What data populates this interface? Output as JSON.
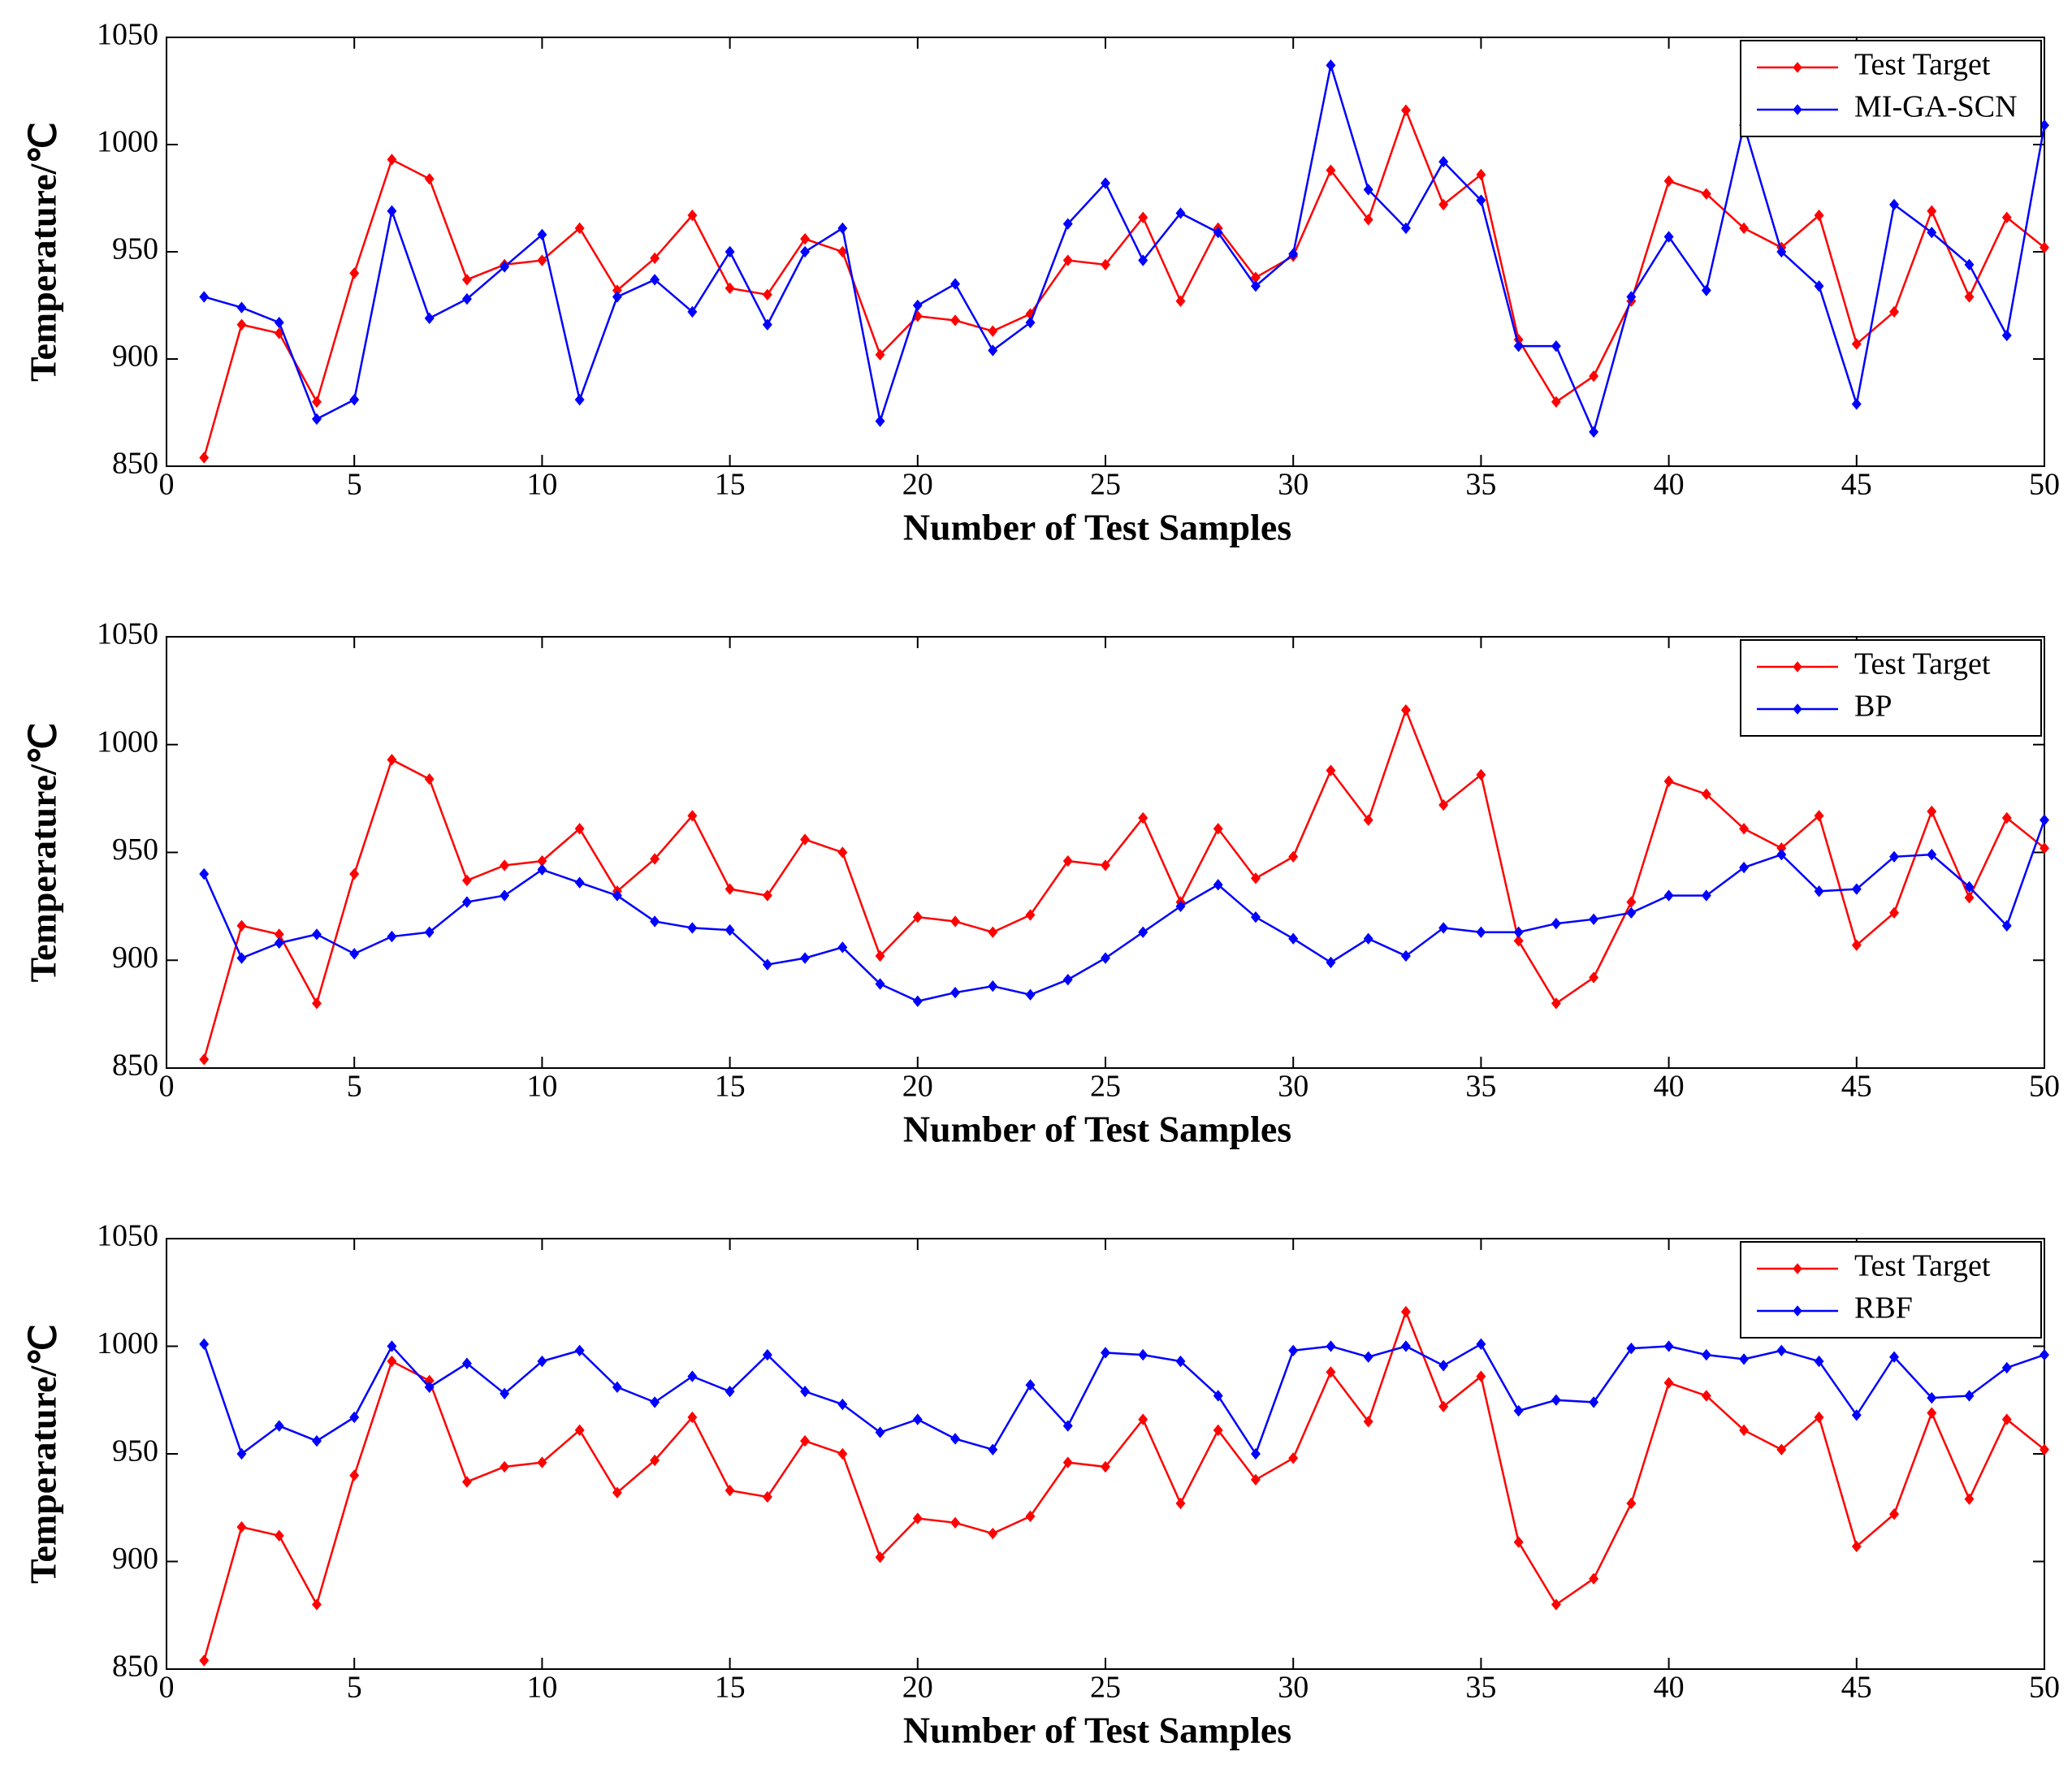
{
  "chart_data": [
    {
      "type": "line",
      "xlabel": "Number of Test Samples",
      "ylabel": "Temperature/℃",
      "x": [
        1,
        2,
        3,
        4,
        5,
        6,
        7,
        8,
        9,
        10,
        11,
        12,
        13,
        14,
        15,
        16,
        17,
        18,
        19,
        20,
        21,
        22,
        23,
        24,
        25,
        26,
        27,
        28,
        29,
        30,
        31,
        32,
        33,
        34,
        35,
        36,
        37,
        38,
        39,
        40,
        41,
        42,
        43,
        44,
        45,
        46,
        47,
        48,
        49,
        50
      ],
      "series": [
        {
          "name": "Test Target",
          "color": "#ff0000",
          "values": [
            854,
            916,
            912,
            880,
            940,
            993,
            984,
            937,
            944,
            946,
            961,
            932,
            947,
            967,
            933,
            930,
            956,
            950,
            902,
            920,
            918,
            913,
            921,
            946,
            944,
            966,
            927,
            961,
            938,
            948,
            988,
            965,
            1016,
            972,
            986,
            909,
            880,
            892,
            927,
            983,
            977,
            961,
            952,
            967,
            907,
            922,
            969,
            929,
            966,
            952
          ]
        },
        {
          "name": "MI-GA-SCN",
          "color": "#0000ff",
          "values": [
            929,
            924,
            917,
            872,
            881,
            969,
            919,
            928,
            943,
            958,
            881,
            929,
            937,
            922,
            950,
            916,
            950,
            961,
            871,
            925,
            935,
            904,
            917,
            963,
            982,
            946,
            968,
            959,
            934,
            949,
            1037,
            979,
            961,
            992,
            974,
            906,
            906,
            866,
            929,
            957,
            932,
            1009,
            950,
            934,
            879,
            972,
            959,
            944,
            911,
            1009
          ]
        }
      ],
      "xlim": [
        0,
        50
      ],
      "xticks": [
        0,
        5,
        10,
        15,
        20,
        25,
        30,
        35,
        40,
        45,
        50
      ],
      "ylim": [
        850,
        1050
      ],
      "yticks": [
        850,
        900,
        950,
        1000,
        1050
      ],
      "legend": "upper right"
    },
    {
      "type": "line",
      "xlabel": "Number of Test Samples",
      "ylabel": "Temperature/℃",
      "x": [
        1,
        2,
        3,
        4,
        5,
        6,
        7,
        8,
        9,
        10,
        11,
        12,
        13,
        14,
        15,
        16,
        17,
        18,
        19,
        20,
        21,
        22,
        23,
        24,
        25,
        26,
        27,
        28,
        29,
        30,
        31,
        32,
        33,
        34,
        35,
        36,
        37,
        38,
        39,
        40,
        41,
        42,
        43,
        44,
        45,
        46,
        47,
        48,
        49,
        50
      ],
      "series": [
        {
          "name": "Test Target",
          "color": "#ff0000",
          "values": [
            854,
            916,
            912,
            880,
            940,
            993,
            984,
            937,
            944,
            946,
            961,
            932,
            947,
            967,
            933,
            930,
            956,
            950,
            902,
            920,
            918,
            913,
            921,
            946,
            944,
            966,
            927,
            961,
            938,
            948,
            988,
            965,
            1016,
            972,
            986,
            909,
            880,
            892,
            927,
            983,
            977,
            961,
            952,
            967,
            907,
            922,
            969,
            929,
            966,
            952
          ]
        },
        {
          "name": "BP",
          "color": "#0000ff",
          "values": [
            940,
            901,
            908,
            912,
            903,
            911,
            913,
            927,
            930,
            942,
            936,
            930,
            918,
            915,
            914,
            898,
            901,
            906,
            889,
            881,
            885,
            888,
            884,
            891,
            901,
            913,
            925,
            935,
            920,
            910,
            899,
            910,
            902,
            915,
            913,
            913,
            917,
            919,
            922,
            930,
            930,
            943,
            949,
            932,
            933,
            948,
            949,
            934,
            916,
            965
          ]
        }
      ],
      "xlim": [
        0,
        50
      ],
      "xticks": [
        0,
        5,
        10,
        15,
        20,
        25,
        30,
        35,
        40,
        45,
        50
      ],
      "ylim": [
        850,
        1050
      ],
      "yticks": [
        850,
        900,
        950,
        1000,
        1050
      ],
      "legend": "upper right"
    },
    {
      "type": "line",
      "xlabel": "Number of Test Samples",
      "ylabel": "Temperature/℃",
      "x": [
        1,
        2,
        3,
        4,
        5,
        6,
        7,
        8,
        9,
        10,
        11,
        12,
        13,
        14,
        15,
        16,
        17,
        18,
        19,
        20,
        21,
        22,
        23,
        24,
        25,
        26,
        27,
        28,
        29,
        30,
        31,
        32,
        33,
        34,
        35,
        36,
        37,
        38,
        39,
        40,
        41,
        42,
        43,
        44,
        45,
        46,
        47,
        48,
        49,
        50
      ],
      "series": [
        {
          "name": "Test Target",
          "color": "#ff0000",
          "values": [
            854,
            916,
            912,
            880,
            940,
            993,
            984,
            937,
            944,
            946,
            961,
            932,
            947,
            967,
            933,
            930,
            956,
            950,
            902,
            920,
            918,
            913,
            921,
            946,
            944,
            966,
            927,
            961,
            938,
            948,
            988,
            965,
            1016,
            972,
            986,
            909,
            880,
            892,
            927,
            983,
            977,
            961,
            952,
            967,
            907,
            922,
            969,
            929,
            966,
            952
          ]
        },
        {
          "name": "RBF",
          "color": "#0000ff",
          "values": [
            1001,
            950,
            963,
            956,
            967,
            1000,
            981,
            992,
            978,
            993,
            998,
            981,
            974,
            986,
            979,
            996,
            979,
            973,
            960,
            966,
            957,
            952,
            982,
            963,
            997,
            996,
            993,
            977,
            950,
            998,
            1000,
            995,
            1000,
            991,
            1001,
            970,
            975,
            974,
            999,
            1000,
            996,
            994,
            998,
            993,
            968,
            995,
            976,
            977,
            990,
            996
          ]
        }
      ],
      "xlim": [
        0,
        50
      ],
      "xticks": [
        0,
        5,
        10,
        15,
        20,
        25,
        30,
        35,
        40,
        45,
        50
      ],
      "ylim": [
        850,
        1050
      ],
      "yticks": [
        850,
        900,
        950,
        1000,
        1050
      ],
      "legend": "upper right"
    }
  ]
}
